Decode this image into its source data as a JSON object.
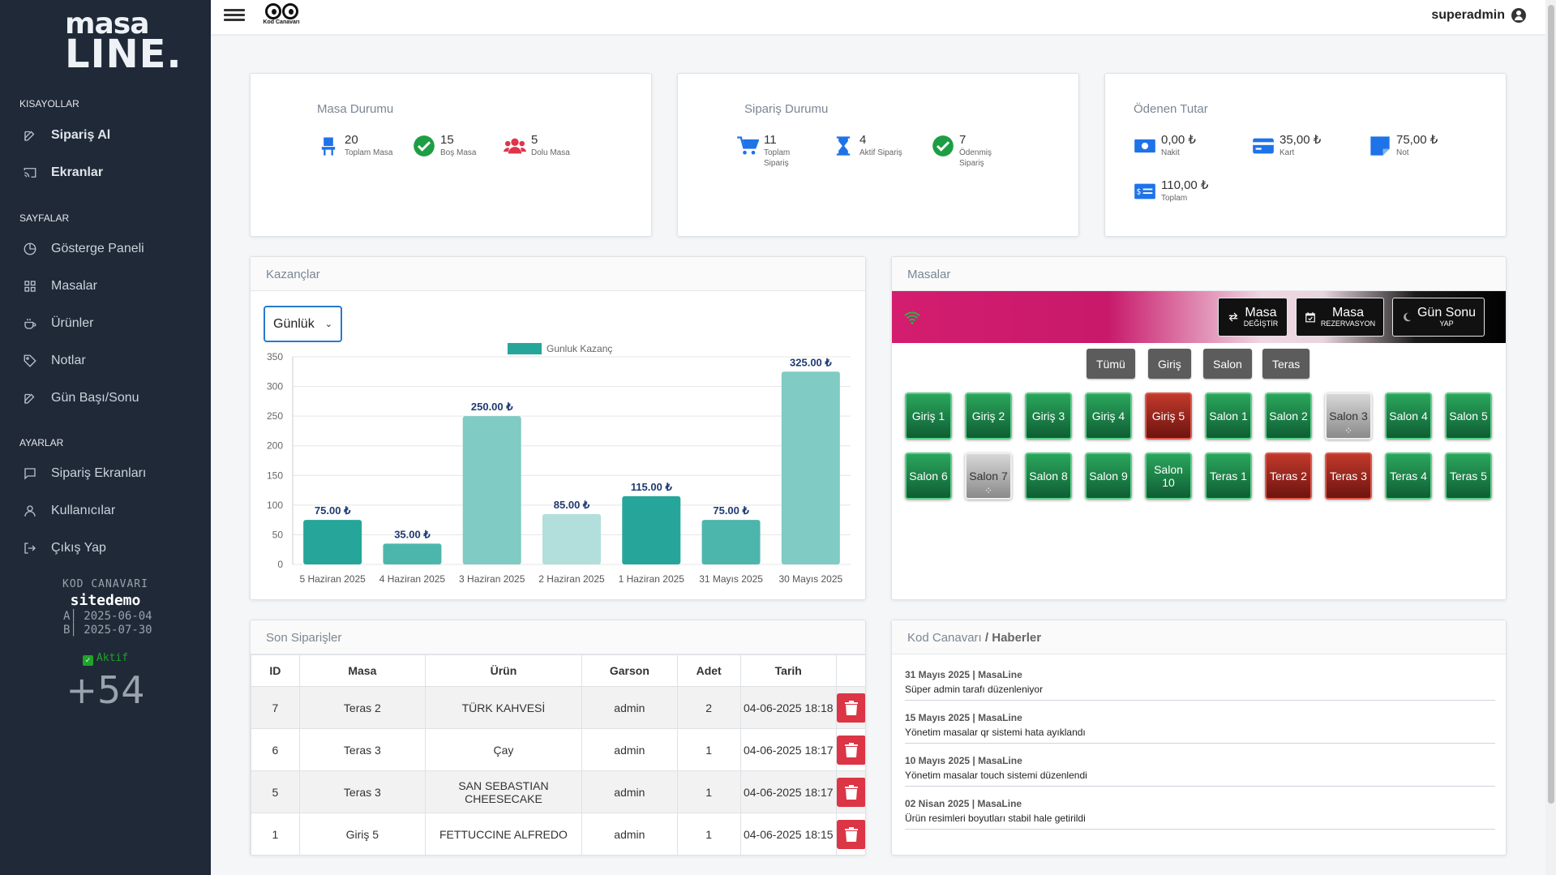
{
  "sidebar": {
    "logo_l1": "masa",
    "logo_l2": "LINE.",
    "sections": {
      "shortcuts": "KISAYOLLAR",
      "pages": "SAYFALAR",
      "settings": "AYARLAR"
    },
    "items": {
      "siparis_al": "Sipariş Al",
      "ekranlar": "Ekranlar",
      "gosterge": "Gösterge Paneli",
      "masalar": "Masalar",
      "urunler": "Ürünler",
      "notlar": "Notlar",
      "gun": "Gün Başı/Sonu",
      "siparis_ekran": "Sipariş Ekranları",
      "kullanicilar": "Kullanıcılar",
      "cikis": "Çıkış Yap"
    },
    "license": {
      "company": "KOD CANAVARI",
      "site": "sitedemo",
      "a_label": "A",
      "a_date": "2025-06-04",
      "b_label": "B",
      "b_date": "2025-07-30",
      "status": "Aktif",
      "days": "+54"
    }
  },
  "topbar": {
    "brand": "Kod Canavarı",
    "user": "superadmin"
  },
  "cards": {
    "masa": {
      "title": "Masa Durumu",
      "s1n": "20",
      "s1l": "Toplam Masa",
      "s2n": "15",
      "s2l": "Boş Masa",
      "s3n": "5",
      "s3l": "Dolu Masa"
    },
    "siparis": {
      "title": "Sipariş Durumu",
      "s1n": "11",
      "s1l": "Toplam Sipariş",
      "s2n": "4",
      "s2l": "Aktif Sipariş",
      "s3n": "7",
      "s3l": "Ödenmiş Sipariş"
    },
    "odenen": {
      "title": "Ödenen Tutar",
      "s1n": "0,00 ₺",
      "s1l": "Nakit",
      "s2n": "35,00 ₺",
      "s2l": "Kart",
      "s3n": "75,00 ₺",
      "s3l": "Not",
      "s4n": "110,00 ₺",
      "s4l": "Toplam"
    }
  },
  "kazanc": {
    "title": "Kazançlar",
    "select": "Günlük"
  },
  "chart_data": {
    "type": "bar",
    "legend": "Gunluk Kazanç",
    "categories": [
      "5 Haziran 2025",
      "4 Haziran 2025",
      "3 Haziran 2025",
      "2 Haziran 2025",
      "1 Haziran 2025",
      "31 Mayıs 2025",
      "30 Mayıs 2025"
    ],
    "values": [
      75,
      35,
      250,
      85,
      115,
      75,
      325
    ],
    "labels": [
      "75.00 ₺",
      "35.00 ₺",
      "250.00 ₺",
      "85.00 ₺",
      "115.00 ₺",
      "75.00 ₺",
      "325.00 ₺"
    ],
    "colors": [
      "#26a69a",
      "#4db6ac",
      "#80cbc4",
      "#b2dfdb",
      "#26a69a",
      "#4db6ac",
      "#80cbc4"
    ],
    "ylim": [
      0,
      350
    ],
    "yticks": [
      "0",
      "50",
      "100",
      "150",
      "200",
      "250",
      "300",
      "350"
    ]
  },
  "masalar": {
    "title": "Masalar",
    "btn_change": "Masa",
    "btn_change_sub": "DEĞİŞTİR",
    "btn_res": "Masa",
    "btn_res_sub": "REZERVASYON",
    "btn_day": "Gün Sonu",
    "btn_day_sub": "YAP",
    "filters": [
      "Tümü",
      "Giriş",
      "Salon",
      "Teras"
    ],
    "tables": [
      {
        "n": "Giriş 1",
        "s": "g"
      },
      {
        "n": "Giriş 2",
        "s": "g"
      },
      {
        "n": "Giriş 3",
        "s": "g"
      },
      {
        "n": "Giriş 4",
        "s": "g"
      },
      {
        "n": "Giriş 5",
        "s": "r"
      },
      {
        "n": "Salon 1",
        "s": "g"
      },
      {
        "n": "Salon 2",
        "s": "g"
      },
      {
        "n": "Salon 3",
        "s": "s"
      },
      {
        "n": "Salon 4",
        "s": "g"
      },
      {
        "n": "Salon 5",
        "s": "g"
      },
      {
        "n": "Salon 6",
        "s": "g"
      },
      {
        "n": "Salon 7",
        "s": "s"
      },
      {
        "n": "Salon 8",
        "s": "g"
      },
      {
        "n": "Salon 9",
        "s": "g"
      },
      {
        "n": "Salon 10",
        "s": "g"
      },
      {
        "n": "Teras 1",
        "s": "g"
      },
      {
        "n": "Teras 2",
        "s": "r"
      },
      {
        "n": "Teras 3",
        "s": "r"
      },
      {
        "n": "Teras 4",
        "s": "g"
      },
      {
        "n": "Teras 5",
        "s": "g"
      }
    ]
  },
  "orders": {
    "title": "Son Siparişler",
    "headers": [
      "ID",
      "Masa",
      "Ürün",
      "Garson",
      "Adet",
      "Tarih"
    ],
    "rows": [
      [
        "7",
        "Teras 2",
        "TÜRK KAHVESİ",
        "admin",
        "2",
        "04-06-2025 18:18"
      ],
      [
        "6",
        "Teras 3",
        "Çay",
        "admin",
        "1",
        "04-06-2025 18:17"
      ],
      [
        "5",
        "Teras 3",
        "SAN SEBASTIAN CHEESECAKE",
        "admin",
        "1",
        "04-06-2025 18:17"
      ],
      [
        "1",
        "Giriş 5",
        "FETTUCCINE ALFREDO",
        "admin",
        "1",
        "04-06-2025 18:15"
      ]
    ]
  },
  "news": {
    "title": "Kod Canavarı",
    "title_b": "/ Haberler",
    "items": [
      {
        "d": "31 Mayıs 2025 | MasaLine",
        "t": "Süper admin tarafı düzenleniyor"
      },
      {
        "d": "15 Mayıs 2025 | MasaLine",
        "t": "Yönetim masalar qr sistemi hata ayıklandı"
      },
      {
        "d": "10 Mayıs 2025 | MasaLine",
        "t": "Yönetim masalar touch sistemi düzenlendi"
      },
      {
        "d": "02 Nisan 2025 | MasaLine",
        "t": "Ürün resimleri boyutları stabil hale getirildi"
      }
    ]
  }
}
